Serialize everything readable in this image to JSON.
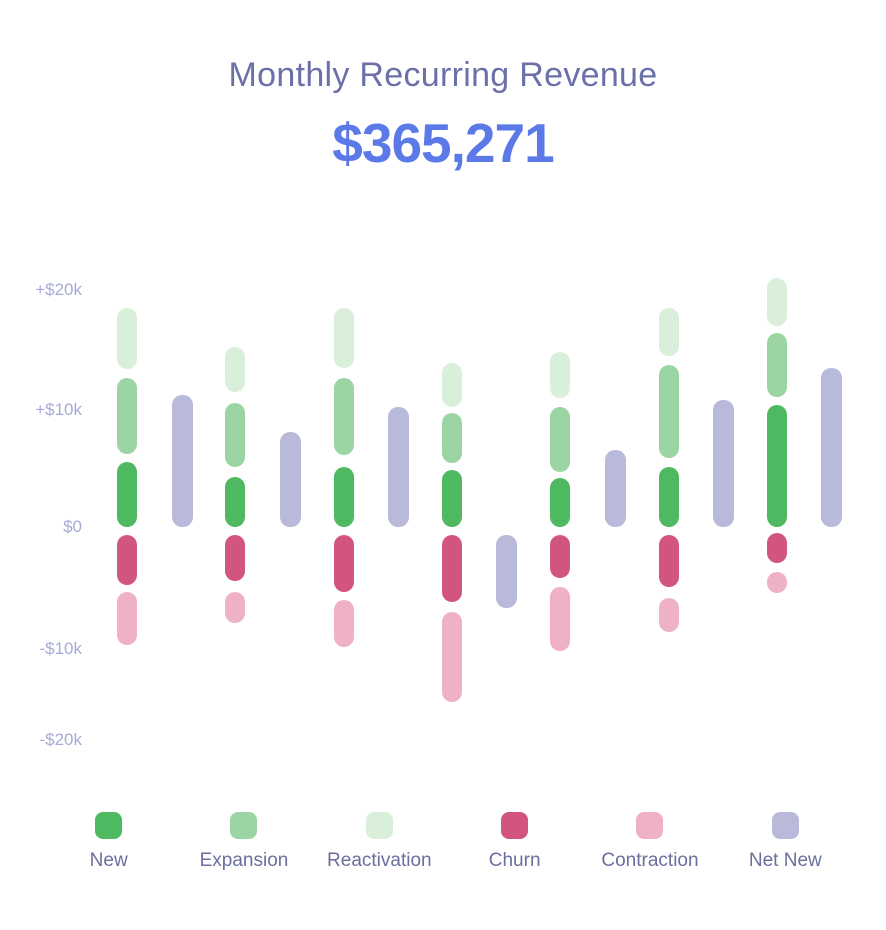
{
  "header": {
    "title": "Monthly Recurring Revenue",
    "value": "$365,271"
  },
  "chart_data": {
    "type": "bar",
    "subtype": "stacked-mrr-movements-with-net-new",
    "title": "Monthly Recurring Revenue",
    "current_value": "$365,271",
    "value_unit": "USD thousands (k)",
    "grid": false,
    "x_axis_labels": [],
    "y_axis": {
      "range_k": [
        -20,
        22
      ],
      "ticks": [
        {
          "label": "+$20k",
          "value": 20
        },
        {
          "label": "+$10k",
          "value": 10
        },
        {
          "label": "$0",
          "value": 0
        },
        {
          "label": "-$10k",
          "value": -10
        },
        {
          "label": "-$20k",
          "value": -20
        }
      ]
    },
    "series": [
      {
        "id": "new",
        "label": "New",
        "color": "#4fb961"
      },
      {
        "id": "expansion",
        "label": "Expansion",
        "color": "#9bd5a3"
      },
      {
        "id": "reactivation",
        "label": "Reactivation",
        "color": "#d9efda"
      },
      {
        "id": "churn",
        "label": "Churn",
        "color": "#d25480"
      },
      {
        "id": "contraction",
        "label": "Contraction",
        "color": "#efb1c6"
      },
      {
        "id": "net_new",
        "label": "Net New",
        "color": "#b9b9d9"
      }
    ],
    "months": [
      {
        "new": [
          0,
          5.5
        ],
        "expansion": [
          6.2,
          12.6
        ],
        "reactivation": [
          13.3,
          18.5
        ],
        "churn": [
          -4.9,
          -0.7
        ],
        "contraction": [
          -10.0,
          -5.5
        ],
        "net_new": [
          0,
          11.1
        ]
      },
      {
        "new": [
          0,
          4.2
        ],
        "expansion": [
          5.1,
          10.5
        ],
        "reactivation": [
          11.4,
          15.2
        ],
        "churn": [
          -4.6,
          -0.7
        ],
        "contraction": [
          -8.1,
          -5.5
        ],
        "net_new": [
          0,
          8.0
        ]
      },
      {
        "new": [
          0,
          5.1
        ],
        "expansion": [
          6.1,
          12.6
        ],
        "reactivation": [
          13.4,
          18.5
        ],
        "churn": [
          -5.5,
          -0.7
        ],
        "contraction": [
          -10.1,
          -6.2
        ],
        "net_new": [
          0,
          10.1
        ]
      },
      {
        "new": [
          0,
          4.8
        ],
        "expansion": [
          5.4,
          9.6
        ],
        "reactivation": [
          10.1,
          13.8
        ],
        "churn": [
          -6.3,
          -0.7
        ],
        "contraction": [
          -14.8,
          -7.2
        ],
        "net_new": [
          -6.8,
          -0.7
        ]
      },
      {
        "new": [
          0,
          4.1
        ],
        "expansion": [
          4.6,
          10.1
        ],
        "reactivation": [
          10.9,
          14.8
        ],
        "churn": [
          -4.3,
          -0.7
        ],
        "contraction": [
          -10.5,
          -5.1
        ],
        "net_new": [
          0,
          6.5
        ]
      },
      {
        "new": [
          0,
          5.1
        ],
        "expansion": [
          5.8,
          13.7
        ],
        "reactivation": [
          14.4,
          18.5
        ],
        "churn": [
          -5.1,
          -0.7
        ],
        "contraction": [
          -8.9,
          -6.0
        ],
        "net_new": [
          0,
          10.7
        ]
      },
      {
        "new": [
          0,
          10.3
        ],
        "expansion": [
          11.0,
          16.4
        ],
        "reactivation": [
          17.0,
          21.0
        ],
        "churn": [
          -3.0,
          -0.5
        ],
        "contraction": [
          -5.6,
          -3.8
        ],
        "net_new": [
          0,
          13.4
        ]
      }
    ],
    "legend_position": "bottom"
  },
  "colors": {
    "background": "#ffffff",
    "title_text": "#6b70a8",
    "value_text": "#5b7ae8",
    "axis_tick_text": "#a7aad6",
    "legend_text": "#6a6f9e"
  }
}
